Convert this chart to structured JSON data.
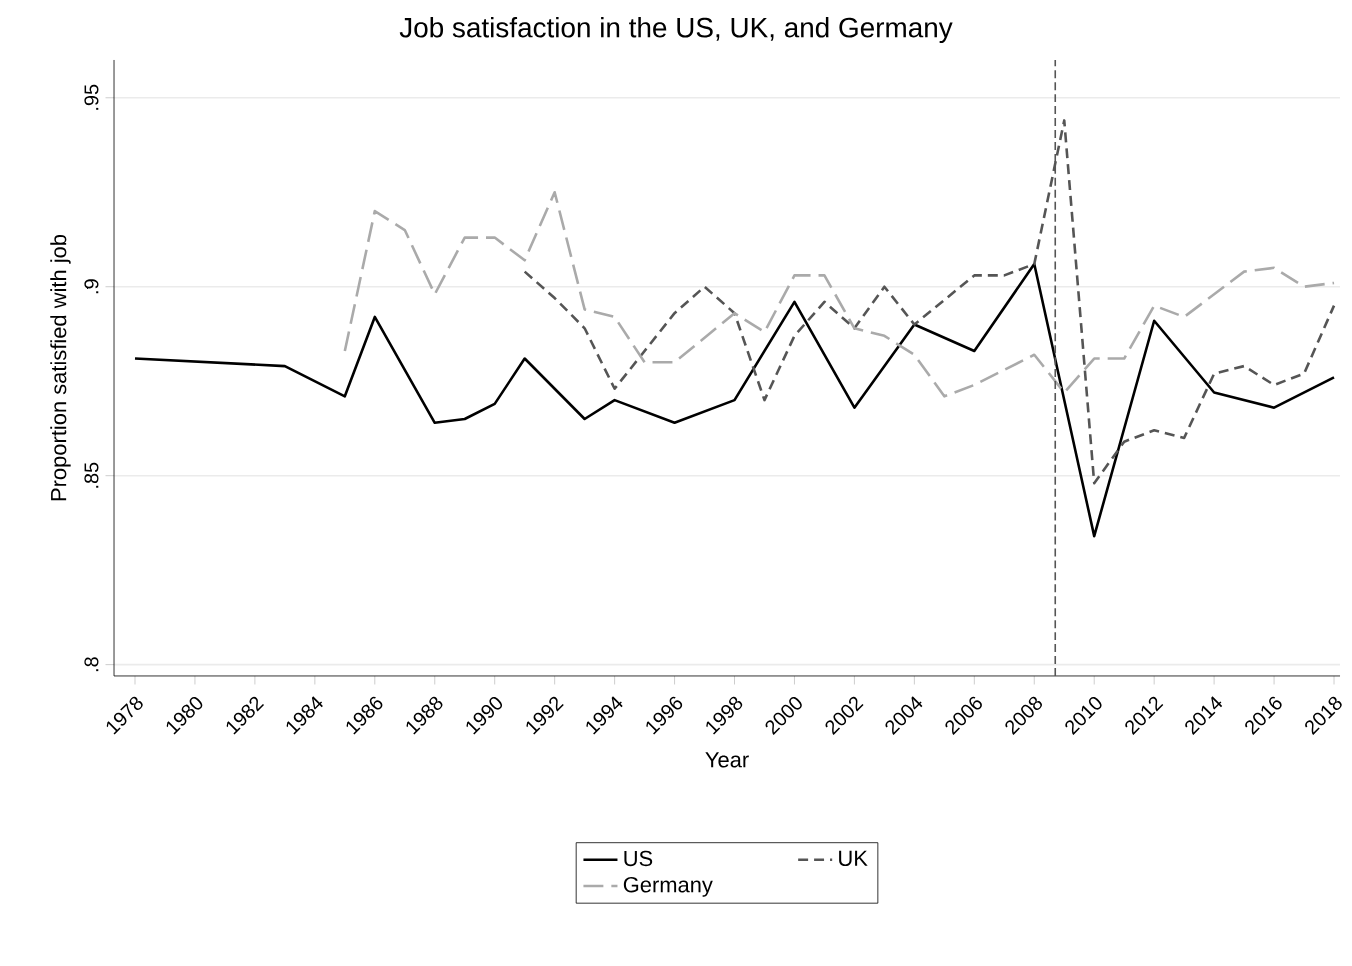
{
  "chart_data": {
    "type": "line",
    "title": "Job satisfaction in the US, UK, and Germany",
    "xlabel": "Year",
    "ylabel": "Proportion satisfied with job",
    "xlim": [
      1977.3,
      2018.2
    ],
    "ylim": [
      0.797,
      0.96
    ],
    "xticks": [
      1978,
      1980,
      1982,
      1984,
      1986,
      1988,
      1990,
      1992,
      1994,
      1996,
      1998,
      2000,
      2002,
      2004,
      2006,
      2008,
      2010,
      2012,
      2014,
      2016,
      2018
    ],
    "yticks": [
      {
        "value": 0.8,
        "label": ".8"
      },
      {
        "value": 0.85,
        "label": ".85"
      },
      {
        "value": 0.9,
        "label": ".9"
      },
      {
        "value": 0.95,
        "label": ".95"
      }
    ],
    "grid": "y",
    "legend": "bottom",
    "marker": "none",
    "ref_lines": [
      {
        "axis": "x",
        "value": 2008.7,
        "label": null,
        "color": "#555555",
        "line_style": "dashed"
      }
    ],
    "series": [
      {
        "name": "US",
        "color": "#000000",
        "line_style": "solid",
        "x": [
          1978,
          1983,
          1985,
          1986,
          1988,
          1989,
          1990,
          1991,
          1993,
          1994,
          1996,
          1998,
          2000,
          2002,
          2004,
          2006,
          2008,
          2010,
          2012,
          2014,
          2016,
          2018
        ],
        "values": [
          0.881,
          0.879,
          0.871,
          0.892,
          0.864,
          0.865,
          0.869,
          0.881,
          0.865,
          0.87,
          0.864,
          0.87,
          0.896,
          0.868,
          0.89,
          0.883,
          0.906,
          0.834,
          0.891,
          0.872,
          0.868,
          0.876
        ]
      },
      {
        "name": "UK",
        "color": "#555555",
        "line_style": "dashed",
        "x": [
          1991,
          1992,
          1993,
          1994,
          1996,
          1997,
          1998,
          1999,
          2000,
          2001,
          2002,
          2003,
          2004,
          2006,
          2007,
          2008,
          2009,
          2010,
          2011,
          2012,
          2013,
          2014,
          2015,
          2016,
          2017,
          2018
        ],
        "values": [
          0.904,
          0.897,
          0.889,
          0.873,
          0.893,
          0.9,
          0.893,
          0.87,
          0.887,
          0.896,
          0.889,
          0.9,
          0.89,
          0.903,
          0.903,
          0.906,
          0.944,
          0.848,
          0.859,
          0.862,
          0.86,
          0.877,
          0.879,
          0.874,
          0.877,
          0.895
        ]
      },
      {
        "name": "Germany",
        "color": "#aaaaaa",
        "line_style": "dashed",
        "x": [
          1985,
          1986,
          1987,
          1988,
          1989,
          1990,
          1991,
          1992,
          1993,
          1994,
          1995,
          1996,
          1998,
          1999,
          2000,
          2001,
          2002,
          2003,
          2004,
          2005,
          2006,
          2008,
          2009,
          2010,
          2011,
          2012,
          2013,
          2014,
          2015,
          2016,
          2017,
          2018
        ],
        "values": [
          0.883,
          0.92,
          0.915,
          0.898,
          0.913,
          0.913,
          0.907,
          0.925,
          0.894,
          0.892,
          0.88,
          0.88,
          0.893,
          0.888,
          0.903,
          0.903,
          0.889,
          0.887,
          0.882,
          0.871,
          0.874,
          0.882,
          0.872,
          0.881,
          0.881,
          0.895,
          0.892,
          0.898,
          0.904,
          0.905,
          0.9,
          0.901
        ]
      }
    ]
  }
}
